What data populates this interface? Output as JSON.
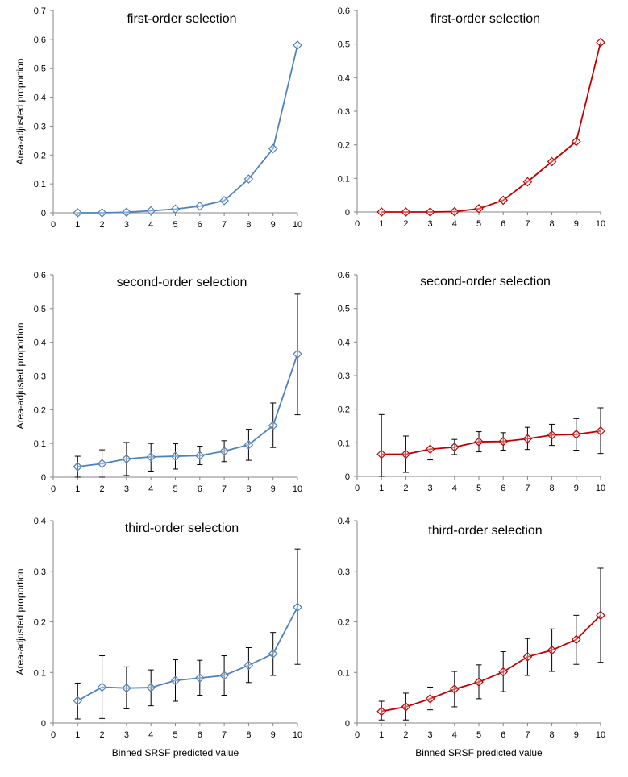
{
  "chart_data": [
    {
      "type": "line",
      "title": "first-order selection",
      "xlabel": "",
      "ylabel": "Area-adjusted proportion",
      "x": [
        1,
        2,
        3,
        4,
        5,
        6,
        7,
        8,
        9,
        10
      ],
      "xlim": [
        0,
        10
      ],
      "ylim": [
        0,
        0.7
      ],
      "yticks": [
        0,
        0.1,
        0.2,
        0.3,
        0.4,
        0.5,
        0.6,
        0.7
      ],
      "color": "#4f81bd",
      "series": [
        {
          "values": [
            0.0,
            0.0,
            0.002,
            0.007,
            0.013,
            0.023,
            0.042,
            0.117,
            0.222,
            0.58
          ]
        }
      ]
    },
    {
      "type": "line",
      "title": "first-order selection",
      "xlabel": "",
      "ylabel": "",
      "x": [
        1,
        2,
        3,
        4,
        5,
        6,
        7,
        8,
        9,
        10
      ],
      "xlim": [
        0,
        10
      ],
      "ylim": [
        0,
        0.6
      ],
      "yticks": [
        0,
        0.1,
        0.2,
        0.3,
        0.4,
        0.5,
        0.6
      ],
      "color": "#c00000",
      "series": [
        {
          "values": [
            0.0,
            0.0,
            0.0,
            0.001,
            0.01,
            0.035,
            0.09,
            0.15,
            0.21,
            0.505
          ]
        }
      ]
    },
    {
      "type": "line",
      "title": "second-order selection",
      "xlabel": "",
      "ylabel": "Area-adjusted proportion",
      "x": [
        1,
        2,
        3,
        4,
        5,
        6,
        7,
        8,
        9,
        10
      ],
      "xlim": [
        0,
        10
      ],
      "ylim": [
        0,
        0.6
      ],
      "yticks": [
        0,
        0.1,
        0.2,
        0.3,
        0.4,
        0.5,
        0.6
      ],
      "color": "#4f81bd",
      "series": [
        {
          "values": [
            0.031,
            0.04,
            0.054,
            0.06,
            0.062,
            0.064,
            0.077,
            0.096,
            0.153,
            0.365
          ],
          "err_low": [
            0.0,
            0.0,
            0.005,
            0.018,
            0.024,
            0.037,
            0.046,
            0.05,
            0.088,
            0.185
          ],
          "err_high": [
            0.062,
            0.081,
            0.103,
            0.1,
            0.099,
            0.092,
            0.108,
            0.142,
            0.22,
            0.543
          ]
        }
      ]
    },
    {
      "type": "line",
      "title": "second-order selection",
      "xlabel": "",
      "ylabel": "",
      "x": [
        1,
        2,
        3,
        4,
        5,
        6,
        7,
        8,
        9,
        10
      ],
      "xlim": [
        0,
        10
      ],
      "ylim": [
        0,
        0.6
      ],
      "yticks": [
        0,
        0.1,
        0.2,
        0.3,
        0.4,
        0.5,
        0.6
      ],
      "color": "#c00000",
      "series": [
        {
          "values": [
            0.066,
            0.066,
            0.081,
            0.087,
            0.103,
            0.104,
            0.112,
            0.123,
            0.125,
            0.135
          ],
          "err_low": [
            0.0,
            0.012,
            0.049,
            0.065,
            0.073,
            0.078,
            0.08,
            0.092,
            0.078,
            0.068
          ],
          "err_high": [
            0.184,
            0.12,
            0.114,
            0.11,
            0.133,
            0.13,
            0.146,
            0.155,
            0.172,
            0.204
          ]
        }
      ]
    },
    {
      "type": "line",
      "title": "third-order selection",
      "xlabel": "Binned SRSF predicted value",
      "ylabel": "Area-adjusted proportion",
      "x": [
        1,
        2,
        3,
        4,
        5,
        6,
        7,
        8,
        9,
        10
      ],
      "xlim": [
        0,
        10
      ],
      "ylim": [
        0,
        0.4
      ],
      "yticks": [
        0,
        0.1,
        0.2,
        0.3,
        0.4
      ],
      "color": "#4f81bd",
      "series": [
        {
          "values": [
            0.044,
            0.071,
            0.069,
            0.07,
            0.084,
            0.089,
            0.094,
            0.114,
            0.137,
            0.229
          ],
          "err_low": [
            0.008,
            0.009,
            0.028,
            0.034,
            0.043,
            0.055,
            0.055,
            0.08,
            0.094,
            0.116
          ],
          "err_high": [
            0.079,
            0.133,
            0.111,
            0.105,
            0.125,
            0.124,
            0.133,
            0.149,
            0.179,
            0.344
          ]
        }
      ]
    },
    {
      "type": "line",
      "title": "third-order selection",
      "xlabel": "Binned SRSF predicted value",
      "ylabel": "",
      "x": [
        1,
        2,
        3,
        4,
        5,
        6,
        7,
        8,
        9,
        10
      ],
      "xlim": [
        0,
        10
      ],
      "ylim": [
        0,
        0.4
      ],
      "yticks": [
        0,
        0.1,
        0.2,
        0.3,
        0.4
      ],
      "color": "#c00000",
      "series": [
        {
          "values": [
            0.023,
            0.032,
            0.048,
            0.067,
            0.081,
            0.101,
            0.131,
            0.144,
            0.165,
            0.213
          ],
          "err_low": [
            0.006,
            0.006,
            0.026,
            0.032,
            0.048,
            0.062,
            0.094,
            0.102,
            0.116,
            0.12
          ],
          "err_high": [
            0.043,
            0.059,
            0.071,
            0.102,
            0.115,
            0.141,
            0.167,
            0.186,
            0.213,
            0.306
          ]
        }
      ]
    }
  ]
}
